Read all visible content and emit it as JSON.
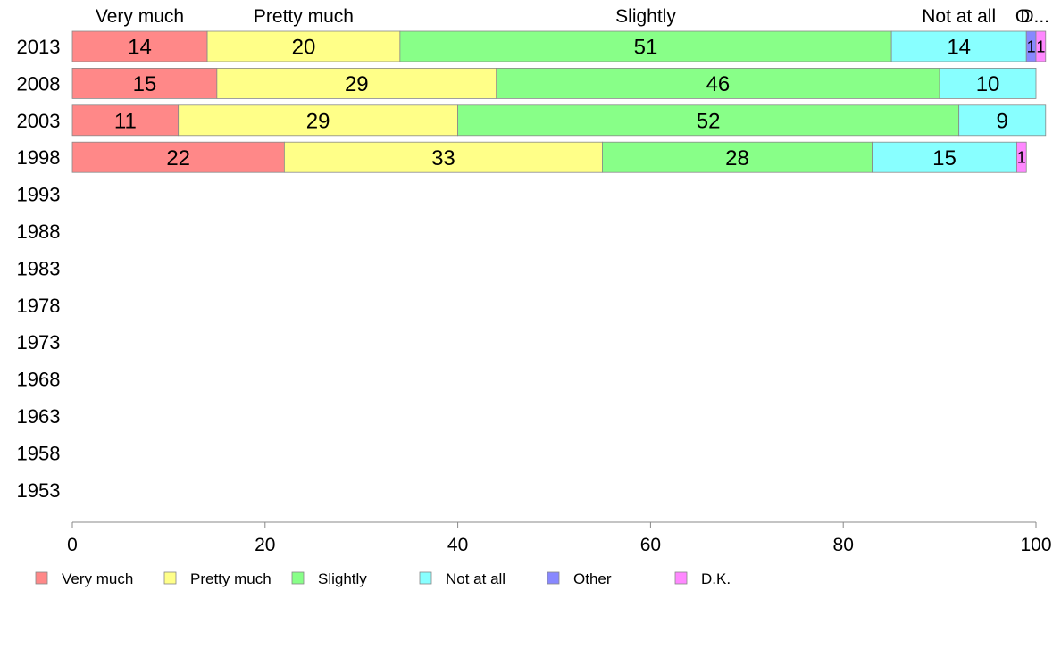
{
  "chart_data": {
    "type": "bar",
    "orientation": "horizontal",
    "stacked": true,
    "categories": [
      "2013",
      "2008",
      "2003",
      "1998",
      "1993",
      "1988",
      "1983",
      "1978",
      "1973",
      "1968",
      "1963",
      "1958",
      "1953"
    ],
    "series": [
      {
        "name": "Very much",
        "color": "#ff8888",
        "values": [
          14,
          15,
          11,
          22,
          null,
          null,
          null,
          null,
          null,
          null,
          null,
          null,
          null
        ]
      },
      {
        "name": "Pretty much",
        "color": "#ffff88",
        "values": [
          20,
          29,
          29,
          33,
          null,
          null,
          null,
          null,
          null,
          null,
          null,
          null,
          null
        ]
      },
      {
        "name": "Slightly",
        "color": "#88ff88",
        "values": [
          51,
          46,
          52,
          28,
          null,
          null,
          null,
          null,
          null,
          null,
          null,
          null,
          null
        ]
      },
      {
        "name": "Not at all",
        "color": "#88ffff",
        "values": [
          14,
          10,
          9,
          15,
          null,
          null,
          null,
          null,
          null,
          null,
          null,
          null,
          null
        ]
      },
      {
        "name": "Other",
        "color": "#8888ff",
        "values": [
          1,
          0,
          0,
          0,
          null,
          null,
          null,
          null,
          null,
          null,
          null,
          null,
          null
        ]
      },
      {
        "name": "D.K.",
        "color": "#ff88ff",
        "values": [
          1,
          0,
          0,
          1,
          null,
          null,
          null,
          null,
          null,
          null,
          null,
          null,
          null
        ]
      }
    ],
    "top_labels": [
      "Very much",
      "Pretty much",
      "Slightly",
      "Not at all",
      "O",
      "D..."
    ],
    "xlim": [
      0,
      100
    ],
    "xticks": [
      0,
      20,
      40,
      60,
      80,
      100
    ],
    "grid": false,
    "legend_position": "bottom"
  }
}
